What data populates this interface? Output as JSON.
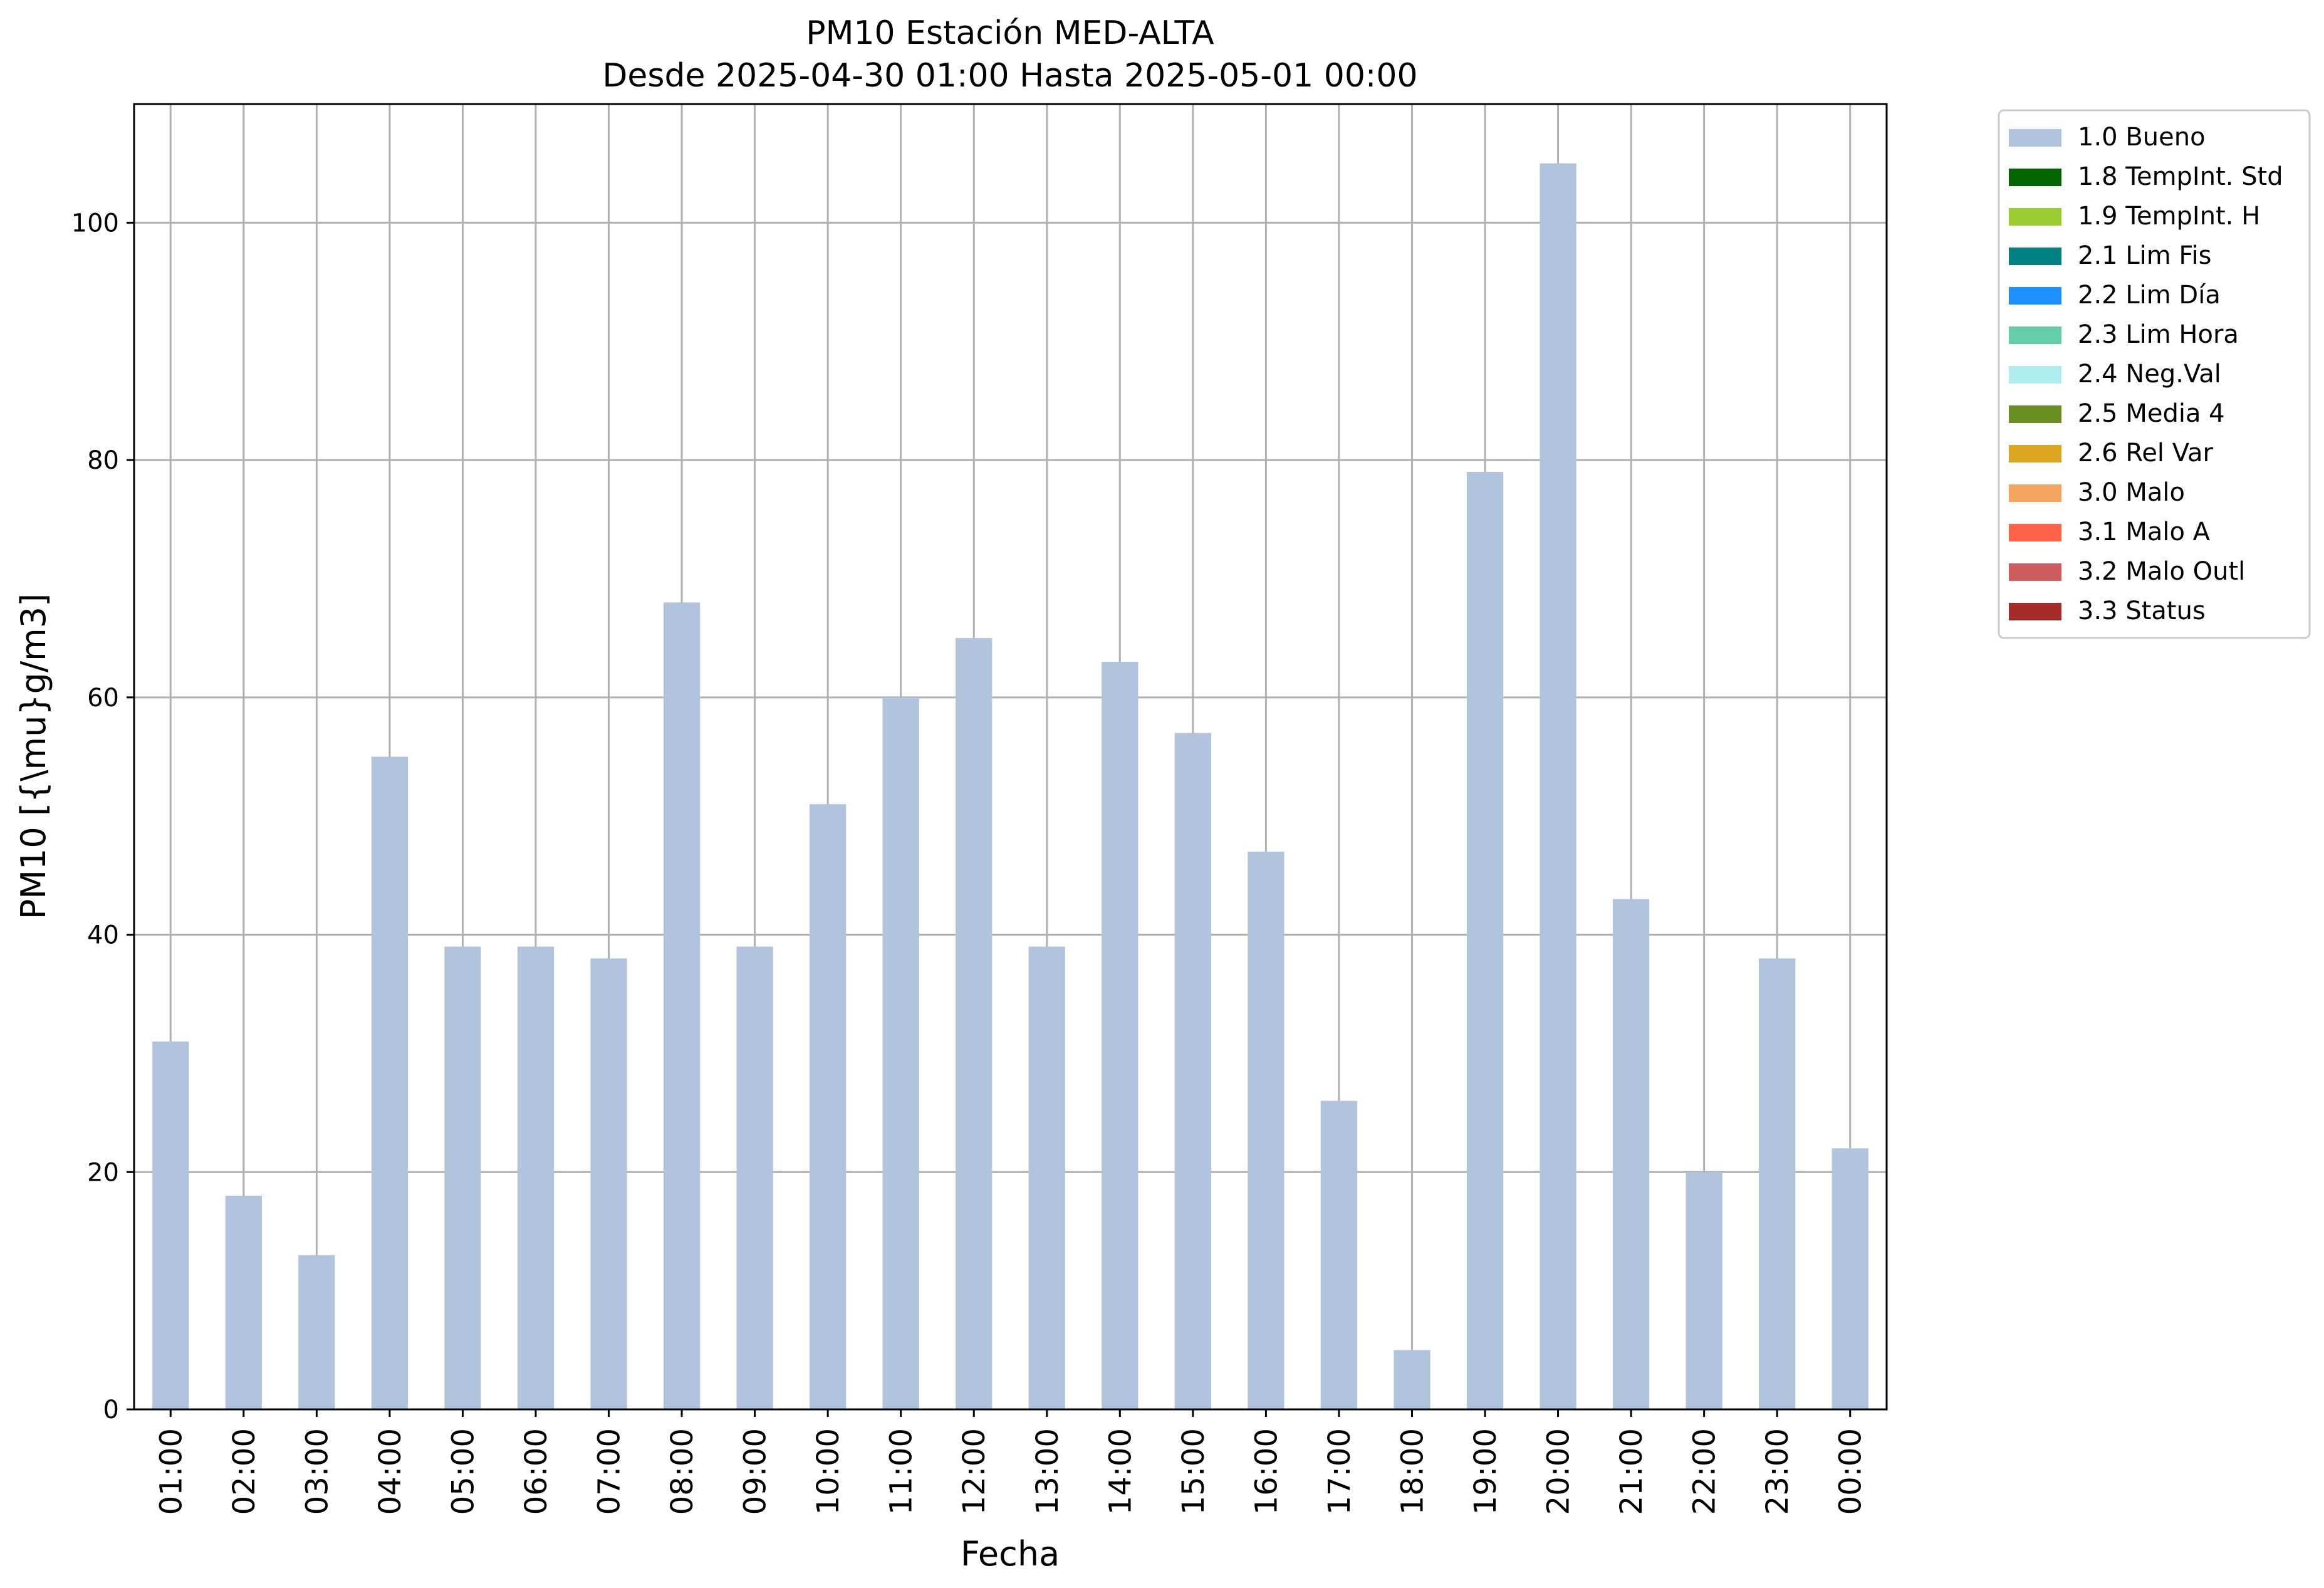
{
  "chart_data": {
    "type": "bar",
    "title_line1": "PM10 Estación MED-ALTA",
    "title_line2": "Desde 2025-04-30 01:00 Hasta 2025-05-01 00:00",
    "xlabel": "Fecha",
    "ylabel": "PM10 [{\\mu}g/m3]",
    "ylim": [
      0,
      110
    ],
    "yticks": [
      0,
      20,
      40,
      60,
      80,
      100
    ],
    "grid": true,
    "legend_position": "outside-top-right",
    "categories": [
      "01:00",
      "02:00",
      "03:00",
      "04:00",
      "05:00",
      "06:00",
      "07:00",
      "08:00",
      "09:00",
      "10:00",
      "11:00",
      "12:00",
      "13:00",
      "14:00",
      "15:00",
      "16:00",
      "17:00",
      "18:00",
      "19:00",
      "20:00",
      "21:00",
      "22:00",
      "23:00",
      "00:00"
    ],
    "series": [
      {
        "name": "1.0 Bueno",
        "color": "#b0c4de",
        "values": [
          31,
          18,
          13,
          55,
          39,
          39,
          38,
          68,
          39,
          51,
          60,
          65,
          39,
          63,
          57,
          47,
          26,
          5,
          79,
          105,
          43,
          20,
          38,
          22
        ]
      }
    ],
    "legend": [
      {
        "label": "1.0 Bueno",
        "color": "#b0c4de"
      },
      {
        "label": "1.8 TempInt. Std",
        "color": "#006400"
      },
      {
        "label": "1.9 TempInt. H",
        "color": "#9acd32"
      },
      {
        "label": "2.1 Lim Fis",
        "color": "#008080"
      },
      {
        "label": "2.2 Lim Día",
        "color": "#1e90ff"
      },
      {
        "label": "2.3 Lim Hora",
        "color": "#66cdaa"
      },
      {
        "label": "2.4 Neg.Val",
        "color": "#afeeee"
      },
      {
        "label": "2.5 Media 4",
        "color": "#6b8e23"
      },
      {
        "label": "2.6 Rel Var",
        "color": "#daa520"
      },
      {
        "label": "3.0 Malo",
        "color": "#f4a460"
      },
      {
        "label": "3.1 Malo A",
        "color": "#ff6347"
      },
      {
        "label": "3.2 Malo Outl",
        "color": "#cd5c5c"
      },
      {
        "label": "3.3 Status",
        "color": "#a52a2a"
      }
    ]
  }
}
